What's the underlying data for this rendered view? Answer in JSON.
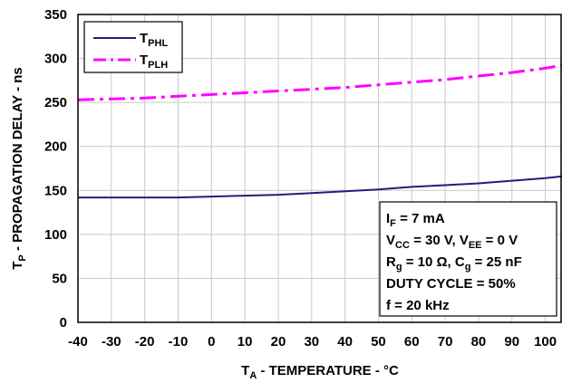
{
  "chart_data": {
    "type": "line",
    "xlabel": {
      "main": "T",
      "sub": "A",
      "rest": " - TEMPERATURE - °C"
    },
    "ylabel": {
      "main": "T",
      "sub": "P",
      "rest": " - PROPAGATION DELAY - ns"
    },
    "xlim": [
      -40,
      105
    ],
    "ylim": [
      0,
      350
    ],
    "xticks": [
      "-40",
      "-30",
      "-20",
      "-10",
      "0",
      "10",
      "20",
      "30",
      "40",
      "50",
      "60",
      "70",
      "80",
      "90",
      "100"
    ],
    "yticks": [
      "0",
      "50",
      "100",
      "150",
      "200",
      "250",
      "300",
      "350"
    ],
    "grid": true,
    "legend_position": "top-left",
    "series": [
      {
        "name": "T",
        "name_sub": "PHL",
        "color": "#1f1f7a",
        "style": "solid",
        "x": [
          -40,
          -30,
          -20,
          -10,
          0,
          10,
          20,
          30,
          40,
          50,
          60,
          70,
          80,
          90,
          100,
          105
        ],
        "y": [
          142,
          142,
          142,
          142,
          143,
          144,
          145,
          147,
          149,
          151,
          154,
          156,
          158,
          161,
          164,
          166
        ]
      },
      {
        "name": "T",
        "name_sub": "PLH",
        "color": "#ff00ff",
        "style": "dashdot",
        "x": [
          -40,
          -30,
          -20,
          -10,
          0,
          10,
          20,
          30,
          40,
          50,
          60,
          70,
          80,
          90,
          100,
          105
        ],
        "y": [
          253,
          254,
          255,
          257,
          259,
          261,
          263,
          265,
          267,
          270,
          273,
          276,
          280,
          284,
          289,
          292
        ]
      }
    ],
    "annotation": [
      {
        "parts": [
          {
            "t": "I"
          },
          {
            "t": "F",
            "sub": true
          },
          {
            "t": " = 7 mA"
          }
        ]
      },
      {
        "parts": [
          {
            "t": "V"
          },
          {
            "t": "CC",
            "sub": true
          },
          {
            "t": " = 30 V, V"
          },
          {
            "t": "EE",
            "sub": true
          },
          {
            "t": " = 0 V"
          }
        ]
      },
      {
        "parts": [
          {
            "t": "R"
          },
          {
            "t": "g",
            "sub": true
          },
          {
            "t": " = 10 Ω, C"
          },
          {
            "t": "g",
            "sub": true
          },
          {
            "t": " = 25 nF"
          }
        ]
      },
      {
        "parts": [
          {
            "t": "DUTY CYCLE = 50%"
          }
        ]
      },
      {
        "parts": [
          {
            "t": "f = 20 kHz"
          }
        ]
      }
    ]
  }
}
